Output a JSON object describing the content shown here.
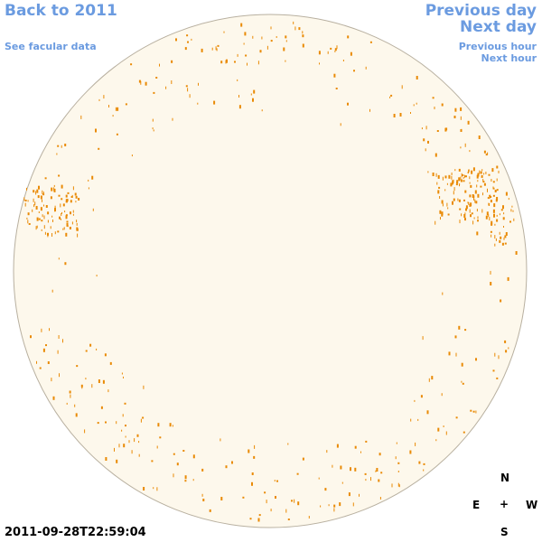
{
  "nav": {
    "back": "Back to 2011",
    "facular": "See facular data",
    "prev_day": "Previous day",
    "next_day": "Next day",
    "prev_hour": "Previous hour",
    "next_hour": "Next hour"
  },
  "timestamp": "2011-09-28T22:59:04",
  "compass": {
    "north": "N",
    "east": "E",
    "center": "+",
    "west": "W",
    "south": "S"
  }
}
